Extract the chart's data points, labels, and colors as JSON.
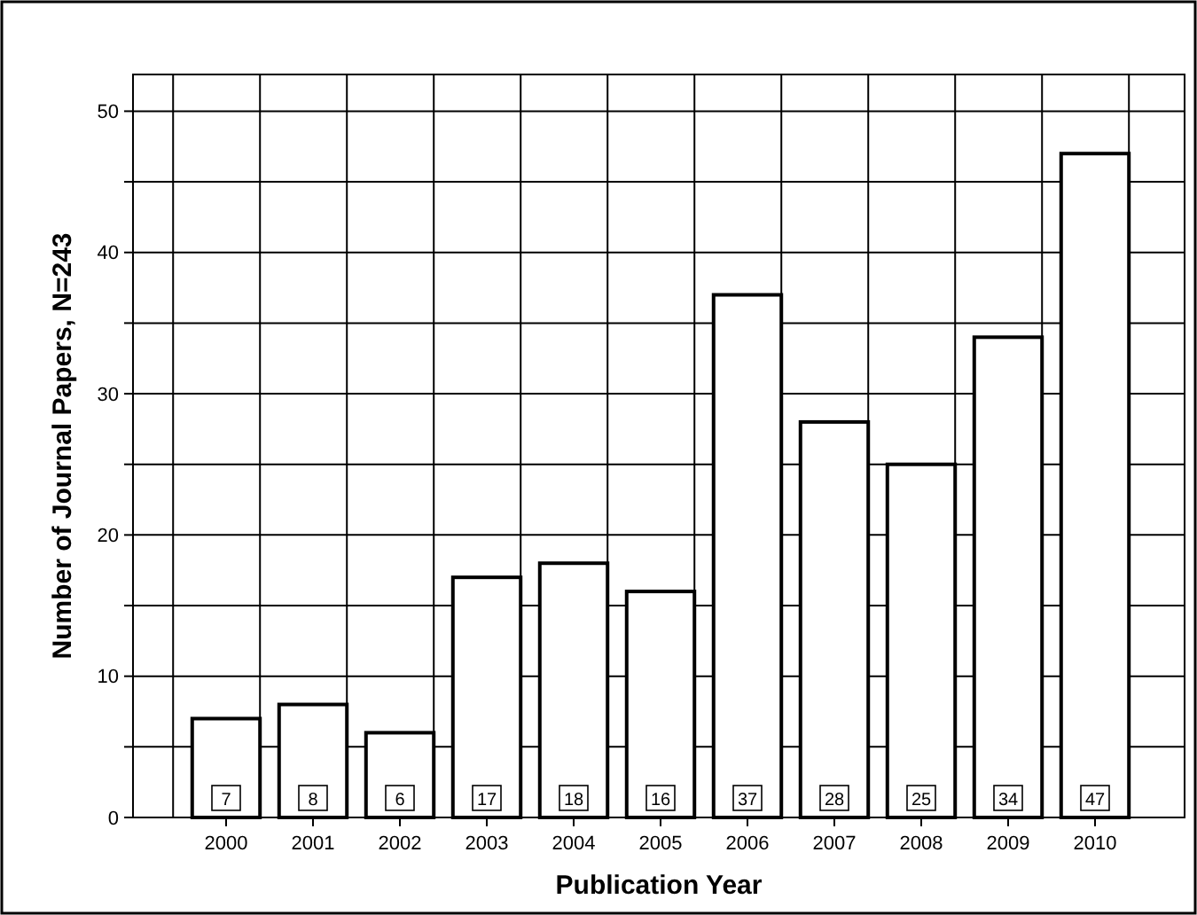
{
  "chart_data": {
    "type": "bar",
    "xlabel": "Publication Year",
    "ylabel": "Number of Journal Papers, N=243",
    "categories": [
      "2000",
      "2001",
      "2002",
      "2003",
      "2004",
      "2005",
      "2006",
      "2007",
      "2008",
      "2009",
      "2010"
    ],
    "values": [
      7,
      8,
      6,
      17,
      18,
      16,
      37,
      28,
      25,
      34,
      47
    ],
    "color": "#ffffff",
    "ylim": [
      0,
      52.6
    ],
    "yticks": [
      0,
      {
        "value": 5,
        "label": null
      },
      10,
      {
        "value": 15,
        "label": null
      },
      20,
      {
        "value": 25,
        "label": null
      },
      30,
      {
        "value": 35,
        "label": null
      },
      40,
      {
        "value": 45,
        "label": null
      },
      50
    ],
    "grid": true,
    "data_labels": true
  }
}
